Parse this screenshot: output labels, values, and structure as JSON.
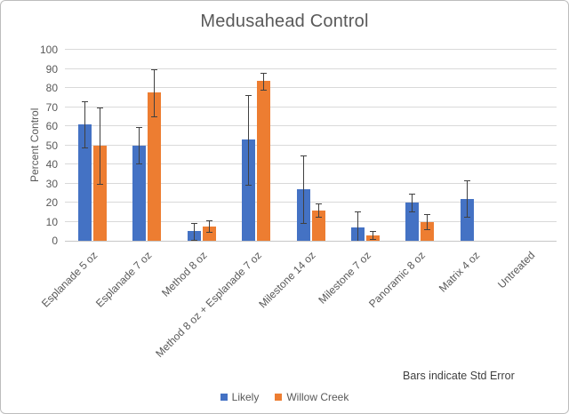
{
  "chart_data": {
    "type": "bar",
    "title": "Medusahead Control",
    "xlabel": "",
    "ylabel": "Percent Control",
    "ylim": [
      0,
      100
    ],
    "ytick_step": 10,
    "grid": true,
    "legend_position": "bottom",
    "annotation": "Bars indicate Std Error",
    "error_bars": "standard error",
    "categories": [
      "Esplanade 5 oz",
      "Esplanade 7 oz",
      "Method 8 oz",
      "Method 8 oz + Esplanade 7 oz",
      "Milestone 14 oz",
      "Milestone 7 oz",
      "Panoramic 8 oz",
      "Matrix 4 oz",
      "Untreated"
    ],
    "series": [
      {
        "name": "Likely",
        "color": "#4472C4",
        "values": [
          61,
          50,
          5,
          53,
          27,
          7,
          20,
          22,
          0
        ],
        "errors": [
          12,
          9.5,
          4.5,
          23.5,
          17.5,
          8.5,
          4.5,
          9.5,
          0
        ]
      },
      {
        "name": "Willow Creek",
        "color": "#ED7D31",
        "values": [
          50,
          77.5,
          7.5,
          83.5,
          16,
          3,
          10,
          0,
          0
        ],
        "errors": [
          20,
          12.5,
          3,
          4.5,
          3.5,
          2,
          4,
          0,
          0
        ]
      }
    ],
    "colors": {
      "title_text": "#595959",
      "axis_text": "#595959",
      "gridline": "#d9d9d9",
      "error_bar": "#404040"
    }
  }
}
